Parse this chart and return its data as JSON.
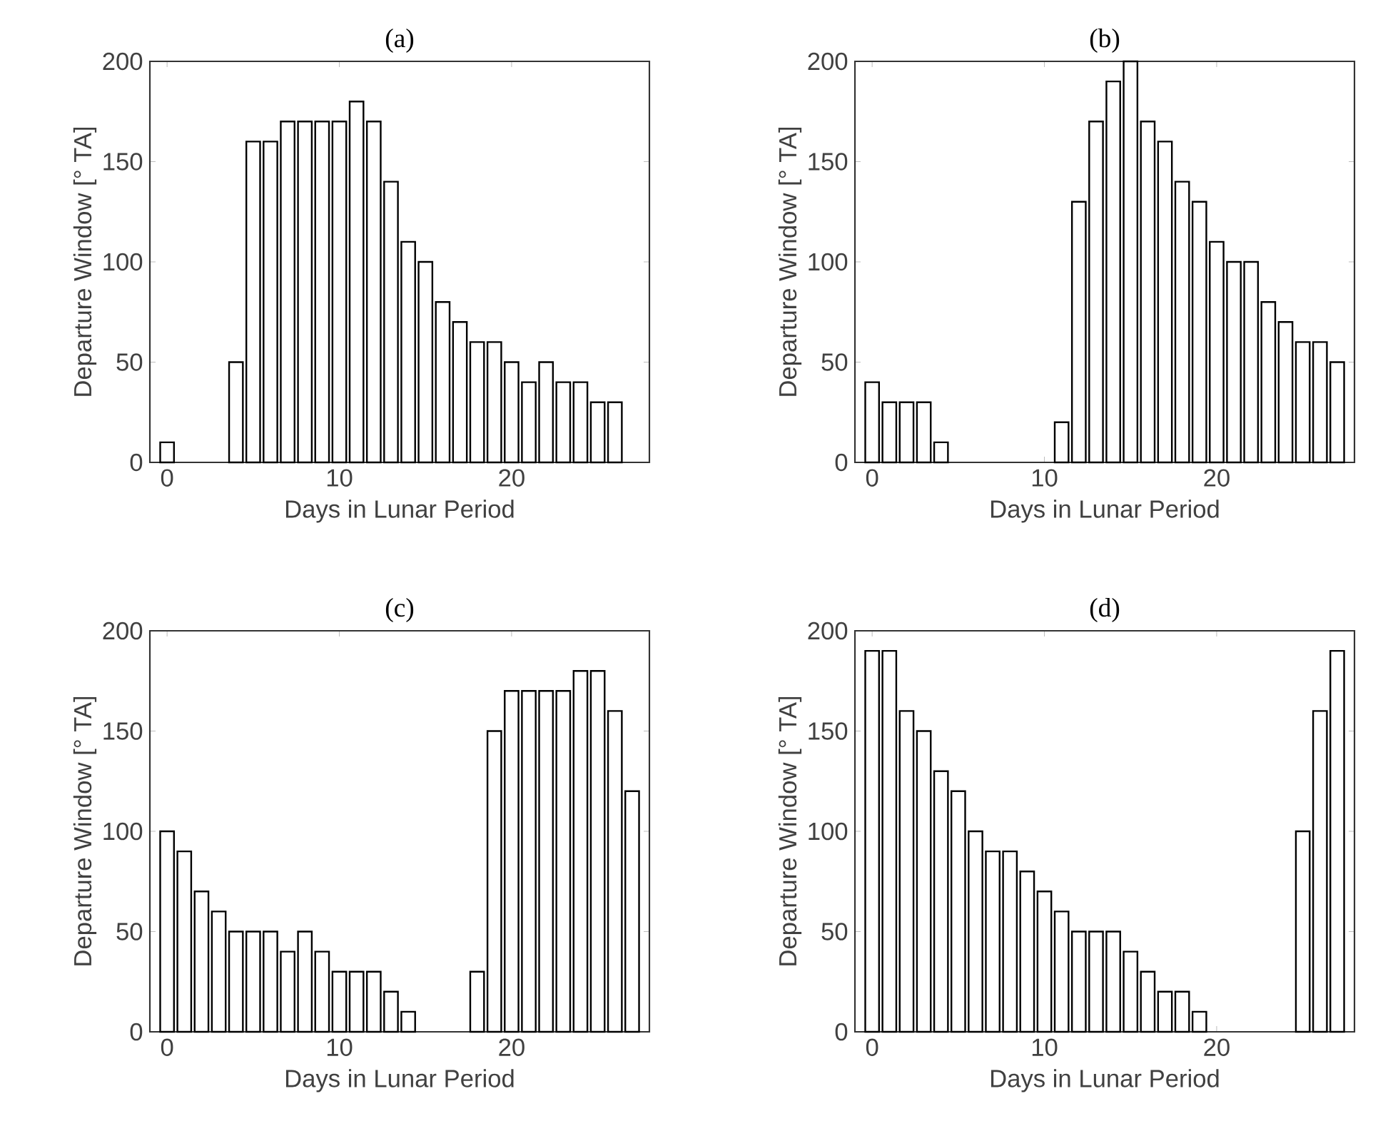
{
  "chart_data": [
    {
      "type": "bar",
      "title": "(a)",
      "xlabel": "Days in Lunar Period",
      "ylabel": "Departure Window [° TA]",
      "color": "#ffffff",
      "xlim": [
        -1,
        28
      ],
      "ylim": [
        0,
        200
      ],
      "xticks": [
        0,
        10,
        20
      ],
      "yticks": [
        0,
        50,
        100,
        150,
        200
      ],
      "x": [
        0,
        1,
        2,
        3,
        4,
        5,
        6,
        7,
        8,
        9,
        10,
        11,
        12,
        13,
        14,
        15,
        16,
        17,
        18,
        19,
        20,
        21,
        22,
        23,
        24,
        25,
        26
      ],
      "values": [
        10,
        null,
        null,
        null,
        50,
        160,
        160,
        170,
        170,
        170,
        170,
        180,
        170,
        140,
        110,
        100,
        80,
        70,
        60,
        60,
        50,
        40,
        50,
        40,
        40,
        30,
        30
      ]
    },
    {
      "type": "bar",
      "title": "(b)",
      "xlabel": "Days in Lunar Period",
      "ylabel": "Departure Window [° TA]",
      "color": "#ffffff",
      "xlim": [
        -1,
        28
      ],
      "ylim": [
        0,
        200
      ],
      "xticks": [
        0,
        10,
        20
      ],
      "yticks": [
        0,
        50,
        100,
        150,
        200
      ],
      "x": [
        0,
        1,
        2,
        3,
        4,
        5,
        6,
        7,
        8,
        9,
        10,
        11,
        12,
        13,
        14,
        15,
        16,
        17,
        18,
        19,
        20,
        21,
        22,
        23,
        24,
        25,
        26,
        27
      ],
      "values": [
        40,
        30,
        30,
        30,
        10,
        null,
        null,
        null,
        null,
        null,
        null,
        20,
        130,
        170,
        190,
        200,
        170,
        160,
        140,
        130,
        110,
        100,
        100,
        80,
        70,
        60,
        60,
        50
      ]
    },
    {
      "type": "bar",
      "title": "(c)",
      "xlabel": "Days in Lunar Period",
      "ylabel": "Departure Window [° TA]",
      "color": "#ffffff",
      "xlim": [
        -1,
        28
      ],
      "ylim": [
        0,
        200
      ],
      "xticks": [
        0,
        10,
        20
      ],
      "yticks": [
        0,
        50,
        100,
        150,
        200
      ],
      "x": [
        0,
        1,
        2,
        3,
        4,
        5,
        6,
        7,
        8,
        9,
        10,
        11,
        12,
        13,
        14,
        15,
        16,
        17,
        18,
        19,
        20,
        21,
        22,
        23,
        24,
        25,
        26,
        27
      ],
      "values": [
        100,
        90,
        70,
        60,
        50,
        50,
        50,
        40,
        50,
        40,
        30,
        30,
        30,
        20,
        10,
        null,
        null,
        null,
        30,
        150,
        170,
        170,
        170,
        170,
        180,
        180,
        160,
        120
      ]
    },
    {
      "type": "bar",
      "title": "(d)",
      "xlabel": "Days in Lunar Period",
      "ylabel": "Departure Window [° TA]",
      "color": "#ffffff",
      "xlim": [
        -1,
        28
      ],
      "ylim": [
        0,
        200
      ],
      "xticks": [
        0,
        10,
        20
      ],
      "yticks": [
        0,
        50,
        100,
        150,
        200
      ],
      "x": [
        0,
        1,
        2,
        3,
        4,
        5,
        6,
        7,
        8,
        9,
        10,
        11,
        12,
        13,
        14,
        15,
        16,
        17,
        18,
        19,
        20,
        21,
        22,
        23,
        24,
        25,
        26,
        27
      ],
      "values": [
        190,
        190,
        160,
        150,
        130,
        120,
        100,
        90,
        90,
        80,
        70,
        60,
        50,
        50,
        50,
        40,
        30,
        20,
        20,
        10,
        null,
        null,
        null,
        null,
        null,
        100,
        160,
        190
      ]
    }
  ]
}
